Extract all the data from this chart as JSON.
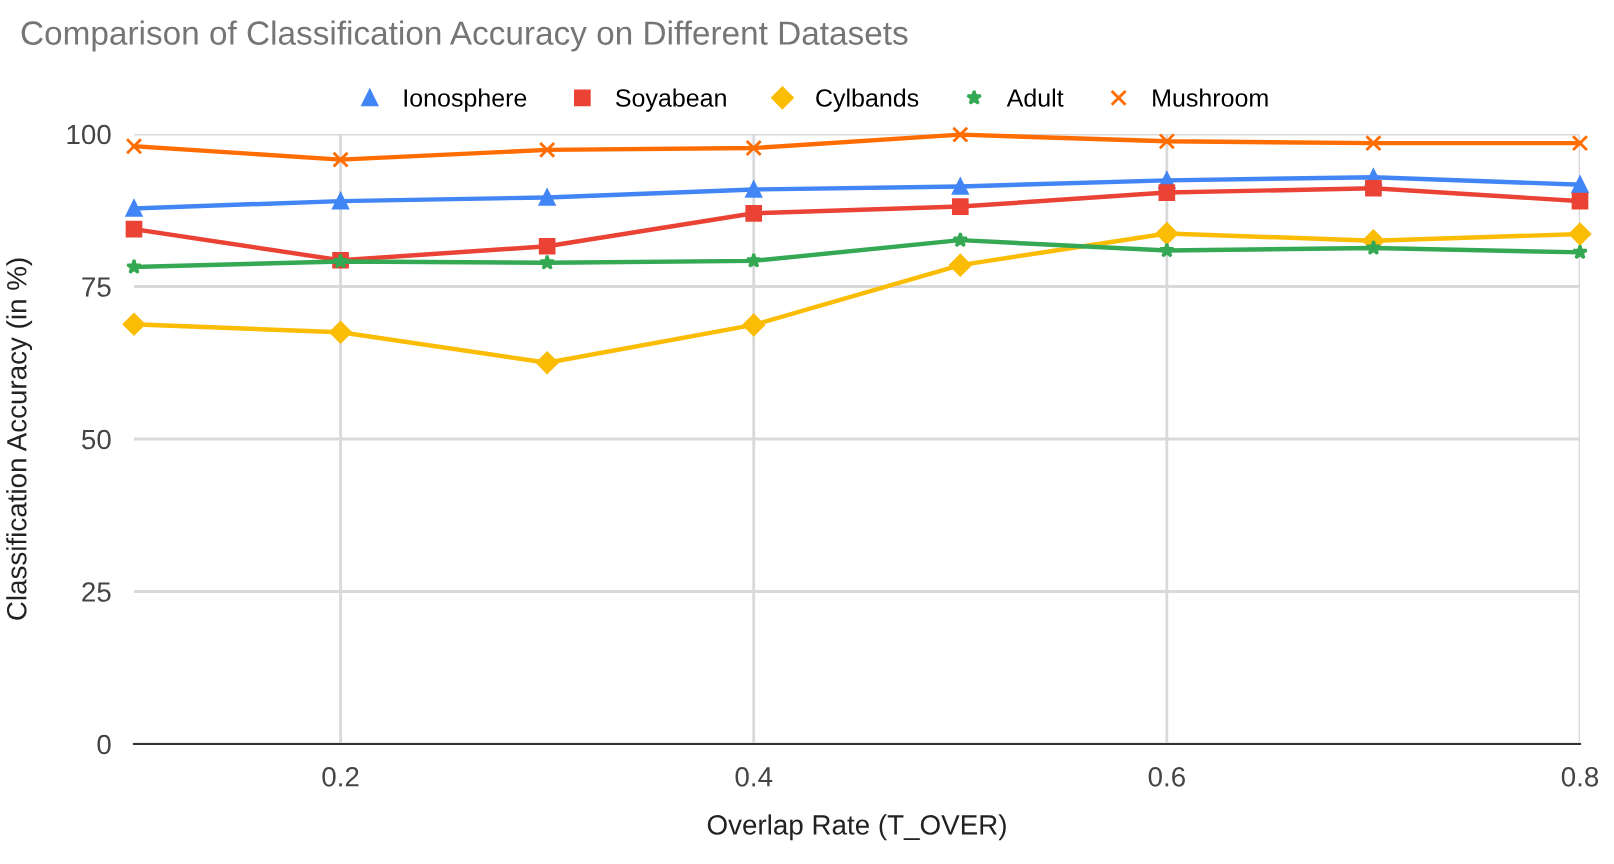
{
  "chart_data": {
    "type": "line",
    "title": "Comparison of Classification Accuracy on Different Datasets",
    "xlabel": "Overlap Rate (T_OVER)",
    "ylabel": "Classification Accuracy (in %)",
    "x": [
      0.1,
      0.2,
      0.3,
      0.4,
      0.5,
      0.6,
      0.7,
      0.8
    ],
    "series": [
      {
        "name": "Ionosphere",
        "color": "#4285f4",
        "marker": "triangle",
        "values": [
          87.8,
          89.0,
          89.6,
          90.9,
          91.4,
          92.4,
          92.9,
          91.7
        ]
      },
      {
        "name": "Soyabean",
        "color": "#ea4335",
        "marker": "square",
        "values": [
          84.4,
          79.3,
          81.6,
          87.0,
          88.1,
          90.4,
          91.1,
          89.0
        ]
      },
      {
        "name": "Cylbands",
        "color": "#fbbc04",
        "marker": "diamond",
        "values": [
          68.8,
          67.5,
          62.5,
          68.7,
          78.5,
          83.7,
          82.5,
          83.6
        ]
      },
      {
        "name": "Adult",
        "color": "#34a853",
        "marker": "star",
        "values": [
          78.2,
          79.1,
          78.9,
          79.2,
          82.6,
          80.9,
          81.3,
          80.6
        ]
      },
      {
        "name": "Mushroom",
        "color": "#ff6d01",
        "marker": "cross",
        "values": [
          98.0,
          95.8,
          97.4,
          97.7,
          99.9,
          98.8,
          98.5,
          98.5
        ]
      }
    ],
    "xlim": [
      0.1,
      0.8
    ],
    "xticks": [
      0.2,
      0.4,
      0.6,
      0.8
    ],
    "ylim": [
      0,
      100
    ],
    "yticks": [
      0,
      25,
      50,
      75,
      100
    ],
    "grid": true,
    "legend": "top",
    "line_style": "solid"
  }
}
